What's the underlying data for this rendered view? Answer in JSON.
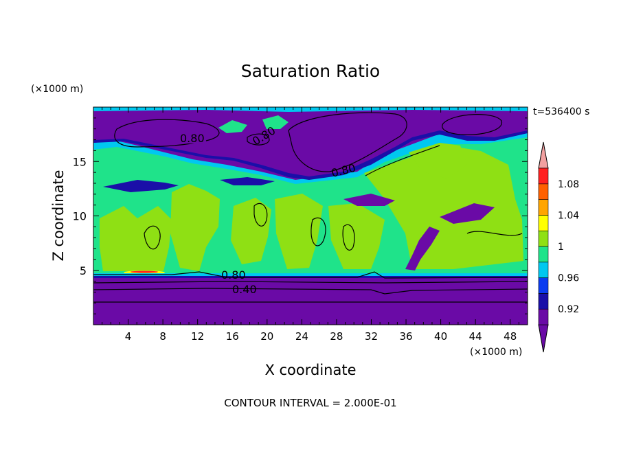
{
  "chart_data": {
    "type": "heatmap",
    "title": "Saturation Ratio",
    "xlabel": "X coordinate",
    "ylabel": "Z coordinate",
    "x_unit": "(×1000 m)",
    "y_unit": "(×1000 m)",
    "time_label": "t=536400 s",
    "footer": "CONTOUR INTERVAL = 2.000E-01",
    "xlim": [
      0,
      50
    ],
    "ylim": [
      0,
      20
    ],
    "x_ticks": [
      4,
      8,
      12,
      16,
      20,
      24,
      28,
      32,
      36,
      40,
      44,
      48
    ],
    "y_ticks": [
      5,
      10,
      15
    ],
    "colorbar": {
      "labels": [
        "1.08",
        "1.04",
        "1",
        "0.96",
        "0.92"
      ],
      "levels": [
        0.9,
        0.92,
        0.94,
        0.96,
        0.98,
        1.0,
        1.02,
        1.04,
        1.06,
        1.08,
        1.1
      ],
      "colors": [
        "#6a0aa6",
        "#1a0fa8",
        "#0a3cf0",
        "#00c8f0",
        "#1fe38a",
        "#8fe014",
        "#ffff00",
        "#ffa500",
        "#ff6000",
        "#ff2020"
      ],
      "under_color": "#6a0aa6",
      "over_color": "#f2a0a0"
    },
    "contour_labels": [
      "0.80",
      "0.80",
      "0.80",
      "0.80",
      "0.40"
    ]
  }
}
